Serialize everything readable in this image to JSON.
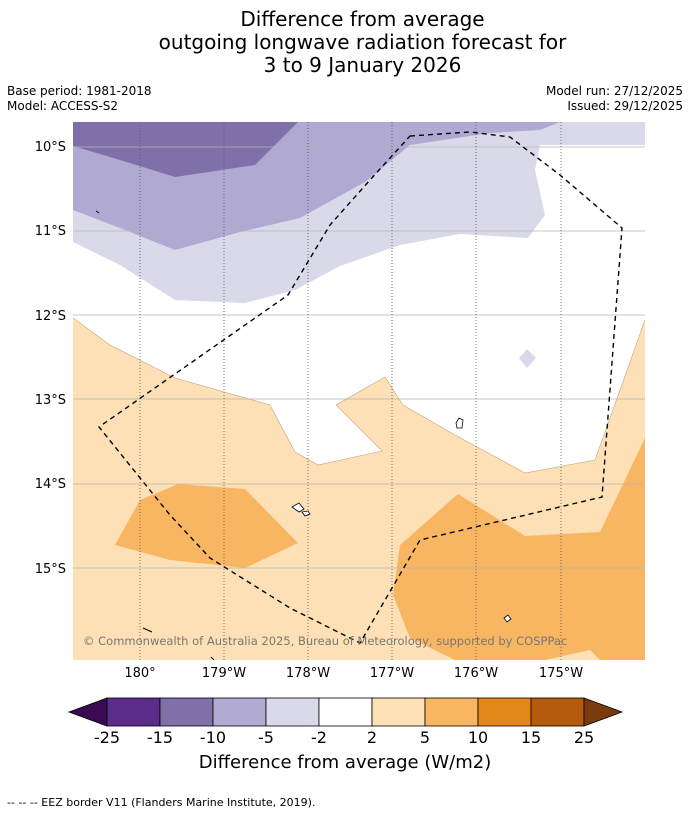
{
  "title": {
    "line1": "Difference from average",
    "line2": "outgoing longwave radiation forecast for",
    "line3": "3 to 9 January 2026"
  },
  "meta": {
    "base_period": "Base period: 1981-2018",
    "model": "Model: ACCESS-S2",
    "model_run": "Model run: 27/12/2025",
    "issued": "Issued: 29/12/2025"
  },
  "axes": {
    "lat_labels": [
      "10°S",
      "11°S",
      "12°S",
      "13°S",
      "14°S",
      "15°S"
    ],
    "lon_labels": [
      "180°",
      "179°W",
      "178°W",
      "177°W",
      "176°W",
      "175°W"
    ]
  },
  "copyright": "© Commonwealth of Australia 2025, Bureau of Meteorology, supported by COSPPac",
  "colorbar": {
    "title": "Difference from average (W/m2)",
    "labels": [
      "-25",
      "-15",
      "-10",
      "-5",
      "-2",
      "2",
      "5",
      "10",
      "15",
      "25"
    ],
    "colors": [
      "#3b0a53",
      "#5b2d8a",
      "#7f70aa",
      "#b0a9d1",
      "#d9d9ea",
      "#ffffff",
      "#fde0b5",
      "#f9b662",
      "#e3871a",
      "#b45b0d",
      "#7a3a0d"
    ]
  },
  "footer": "-- -- -- EEZ border V11 (Flanders Marine Institute, 2019)."
}
